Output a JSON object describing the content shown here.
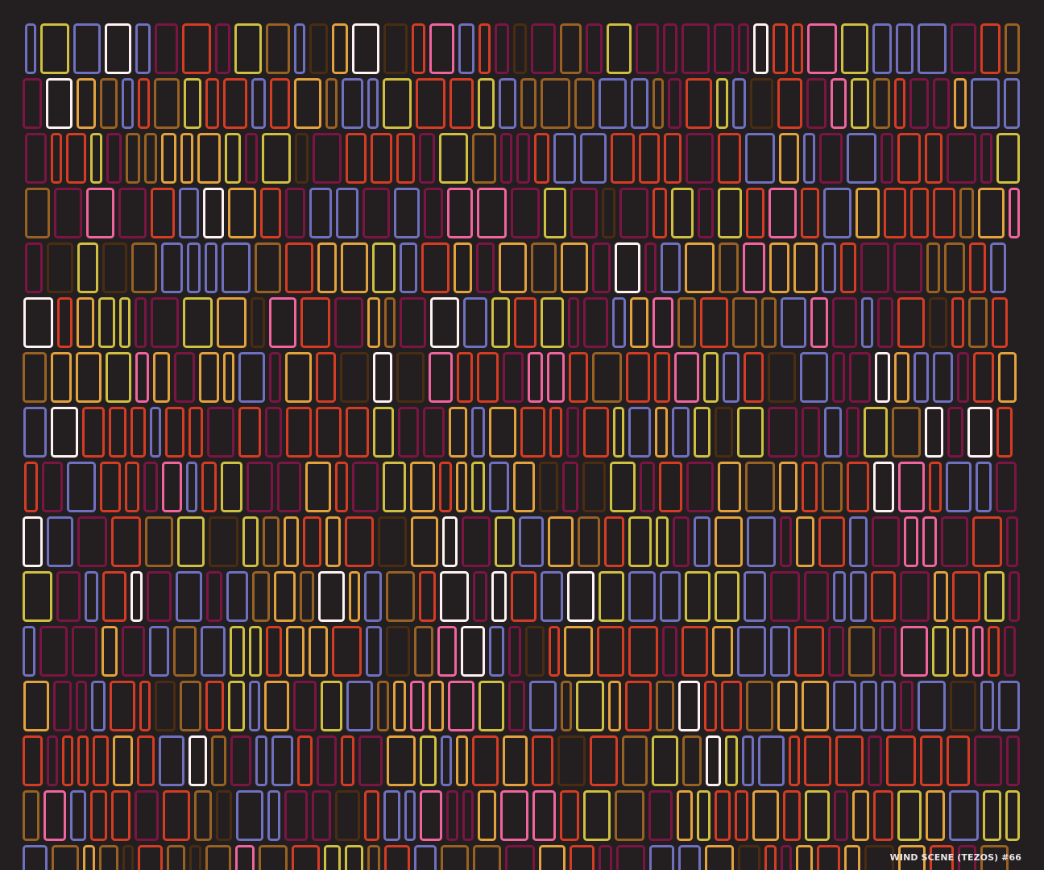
{
  "artwork": {
    "caption": "WIND SCENE (TEZOS) #66",
    "background": "#231f20",
    "palette": [
      "#9a6222",
      "#7c1444",
      "#d63c24",
      "#7070c0",
      "#e4a23c",
      "#cfc040",
      "#fff2f2",
      "#f2649e",
      "#4a2c12"
    ],
    "rows": 16
  }
}
